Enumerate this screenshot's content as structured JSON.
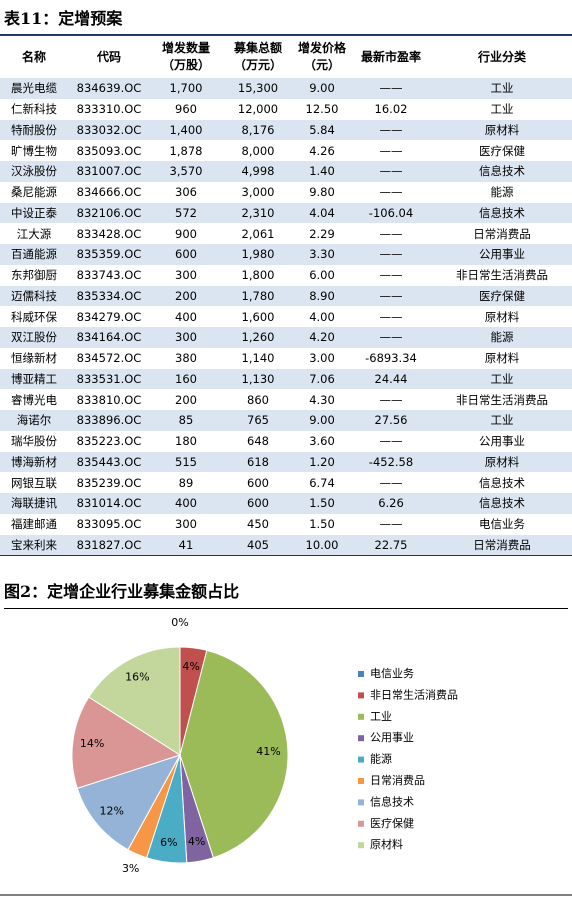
{
  "table_title": "表11：定增预案",
  "table": {
    "headers": [
      "名称",
      "代码",
      "增发数量（万股）",
      "募集总额（万元）",
      "增发价格（元）",
      "最新市盈率",
      "行业分类"
    ],
    "rows": [
      [
        "晨光电缆",
        "834639.OC",
        "1,700",
        "15,300",
        "9.00",
        "——",
        "工业"
      ],
      [
        "仁新科技",
        "833310.OC",
        "960",
        "12,000",
        "12.50",
        "16.02",
        "工业"
      ],
      [
        "特耐股份",
        "833032.OC",
        "1,400",
        "8,176",
        "5.84",
        "——",
        "原材料"
      ],
      [
        "旷博生物",
        "835093.OC",
        "1,878",
        "8,000",
        "4.26",
        "——",
        "医疗保健"
      ],
      [
        "汉泳股份",
        "831007.OC",
        "3,570",
        "4,998",
        "1.40",
        "——",
        "信息技术"
      ],
      [
        "桑尼能源",
        "834666.OC",
        "306",
        "3,000",
        "9.80",
        "——",
        "能源"
      ],
      [
        "中设正泰",
        "832106.OC",
        "572",
        "2,310",
        "4.04",
        "-106.04",
        "信息技术"
      ],
      [
        "江大源",
        "833428.OC",
        "900",
        "2,061",
        "2.29",
        "——",
        "日常消费品"
      ],
      [
        "百通能源",
        "835359.OC",
        "600",
        "1,980",
        "3.30",
        "——",
        "公用事业"
      ],
      [
        "东邦御厨",
        "833743.OC",
        "300",
        "1,800",
        "6.00",
        "——",
        "非日常生活消费品"
      ],
      [
        "迈儒科技",
        "835334.OC",
        "200",
        "1,780",
        "8.90",
        "——",
        "医疗保健"
      ],
      [
        "科威环保",
        "834279.OC",
        "400",
        "1,600",
        "4.00",
        "——",
        "原材料"
      ],
      [
        "双江股份",
        "834164.OC",
        "300",
        "1,260",
        "4.20",
        "——",
        "能源"
      ],
      [
        "恒缘新材",
        "834572.OC",
        "380",
        "1,140",
        "3.00",
        "-6893.34",
        "原材料"
      ],
      [
        "博亚精工",
        "833531.OC",
        "160",
        "1,130",
        "7.06",
        "24.44",
        "工业"
      ],
      [
        "睿博光电",
        "833810.OC",
        "200",
        "860",
        "4.30",
        "——",
        "非日常生活消费品"
      ],
      [
        "海诺尔",
        "833896.OC",
        "85",
        "765",
        "9.00",
        "27.56",
        "工业"
      ],
      [
        "瑞华股份",
        "835223.OC",
        "180",
        "648",
        "3.60",
        "——",
        "公用事业"
      ],
      [
        "博海新材",
        "835443.OC",
        "515",
        "618",
        "1.20",
        "-452.58",
        "原材料"
      ],
      [
        "网银互联",
        "835239.OC",
        "89",
        "600",
        "6.74",
        "——",
        "信息技术"
      ],
      [
        "海联捷讯",
        "831014.OC",
        "400",
        "600",
        "1.50",
        "6.26",
        "信息技术"
      ],
      [
        "福建邮通",
        "833095.OC",
        "300",
        "450",
        "1.50",
        "——",
        "电信业务"
      ],
      [
        "宝来利来",
        "831827.OC",
        "41",
        "405",
        "10.00",
        "22.75",
        "日常消费品"
      ]
    ]
  },
  "chart_data": {
    "type": "pie",
    "title": "图2：定增企业行业募集金额占比",
    "categories": [
      "电信业务",
      "非日常生活消费品",
      "工业",
      "公用事业",
      "能源",
      "日常消费品",
      "信息技术",
      "医疗保健",
      "原材料"
    ],
    "values": [
      0,
      4,
      41,
      4,
      6,
      3,
      12,
      14,
      16
    ],
    "value_labels": [
      "0%",
      "4%",
      "41%",
      "4%",
      "6%",
      "3%",
      "12%",
      "14%",
      "16%"
    ],
    "colors": [
      "#4f81bd",
      "#c0504d",
      "#9bbb59",
      "#8064a2",
      "#4bacc6",
      "#f79646",
      "#95b3d7",
      "#d99694",
      "#c3d69b"
    ]
  }
}
